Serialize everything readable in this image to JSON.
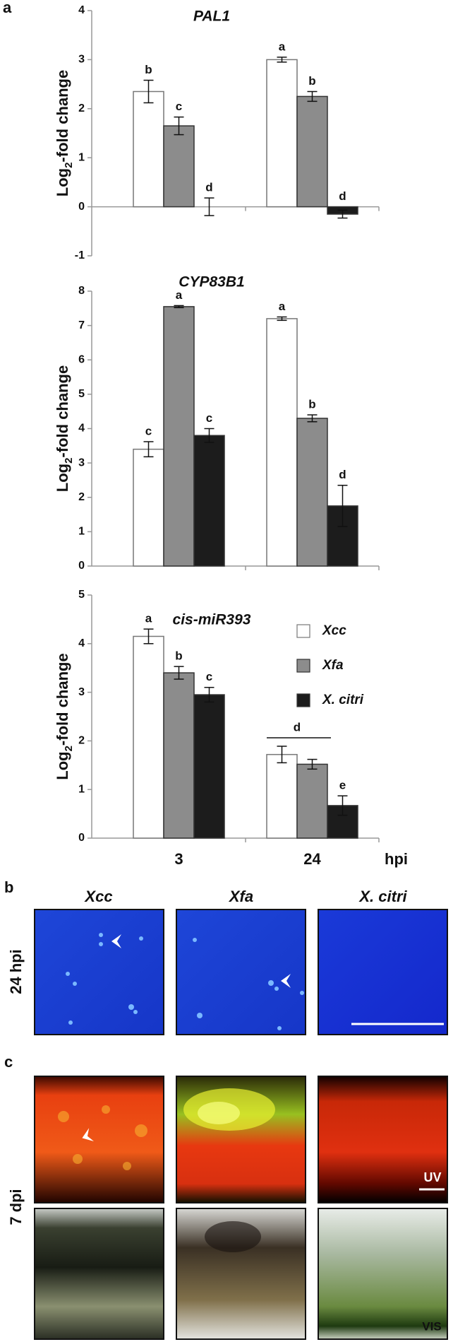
{
  "chart_data": [
    {
      "type": "bar",
      "title": "PAL1",
      "categories": [
        null,
        null
      ],
      "ylim": [
        -1,
        4
      ],
      "yticks": [
        -1,
        0,
        1,
        2,
        3,
        4
      ],
      "ylabel": [
        "Log",
        "2",
        "-fold change"
      ],
      "series": [
        {
          "color": "#ffffff",
          "values": [
            2.35,
            3.0
          ],
          "errors": [
            0.23,
            0.05
          ],
          "letters": [
            "b",
            "a"
          ]
        },
        {
          "color": "#8c8c8c",
          "values": [
            1.65,
            2.25
          ],
          "errors": [
            0.18,
            0.1
          ],
          "letters": [
            "c",
            "b"
          ]
        },
        {
          "color": "#1c1c1c",
          "values": [
            0.0,
            -0.15
          ],
          "errors": [
            0.18,
            0.08
          ],
          "letters": [
            "d",
            "d"
          ]
        }
      ]
    },
    {
      "type": "bar",
      "title": "CYP83B1",
      "categories": [
        null,
        null
      ],
      "ylim": [
        0,
        8
      ],
      "yticks": [
        0,
        1,
        2,
        3,
        4,
        5,
        6,
        7,
        8
      ],
      "ylabel": [
        "Log",
        "2",
        "-fold change"
      ],
      "series": [
        {
          "color": "#ffffff",
          "values": [
            3.4,
            7.2
          ],
          "errors": [
            0.22,
            0.05
          ],
          "letters": [
            "c",
            "a"
          ]
        },
        {
          "color": "#8c8c8c",
          "values": [
            7.55,
            4.3
          ],
          "errors": [
            0.03,
            0.1
          ],
          "letters": [
            "a",
            "b"
          ]
        },
        {
          "color": "#1c1c1c",
          "values": [
            3.8,
            1.75
          ],
          "errors": [
            0.2,
            0.6
          ],
          "letters": [
            "c",
            "d"
          ]
        }
      ]
    },
    {
      "type": "bar",
      "title": "cis-miR393",
      "categories": [
        "3",
        "24"
      ],
      "xlabel": "hpi",
      "ylim": [
        0,
        5
      ],
      "yticks": [
        0,
        1,
        2,
        3,
        4,
        5
      ],
      "ylabel": [
        "Log",
        "2",
        "-fold change"
      ],
      "legend": "upper right",
      "series": [
        {
          "name": "Xcc",
          "color": "#ffffff",
          "values": [
            4.15,
            1.72
          ],
          "errors": [
            0.15,
            0.17
          ],
          "letters": [
            "a",
            "d"
          ]
        },
        {
          "name": "Xfa",
          "color": "#8c8c8c",
          "values": [
            3.4,
            1.52
          ],
          "errors": [
            0.13,
            0.1
          ],
          "letters": [
            "b",
            null
          ]
        },
        {
          "name": "X. citri",
          "color": "#1c1c1c",
          "values": [
            2.95,
            0.67
          ],
          "errors": [
            0.15,
            0.2
          ],
          "letters": [
            "c",
            "e"
          ]
        }
      ]
    }
  ],
  "panel_a": "a",
  "panel_b": {
    "label": "b",
    "columns": [
      "Xcc",
      "Xfa",
      "X. citri"
    ],
    "row": "24 hpi"
  },
  "panel_c": {
    "label": "c",
    "row": "7 dpi",
    "uv": "UV",
    "vis": "VIS"
  }
}
